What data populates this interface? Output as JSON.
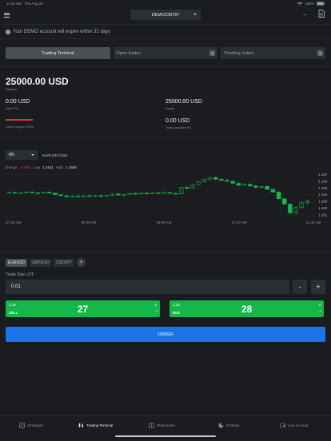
{
  "status_bar": {
    "time": "11:42 AM",
    "date": "Thu Aug 25",
    "battery": "100%"
  },
  "header": {
    "account": "DEMO228787",
    "more_label": "..."
  },
  "notice": {
    "text": "Your DEMO account will expire within 31 days"
  },
  "tabs": [
    {
      "label": "Trading Terminal",
      "active": true,
      "badge": ""
    },
    {
      "label": "Open trades",
      "active": false,
      "badge": "0"
    },
    {
      "label": "Pending orders",
      "active": false,
      "badge": "0"
    }
  ],
  "account": {
    "balance": "25000.00 USD",
    "balance_label": "Balance",
    "open_pl": "0.00 USD",
    "open_pl_label": "Open P/L",
    "equity": "25000.00 USD",
    "equity_label": "Equity",
    "used_margin_label": "Used margin 0.00%",
    "today_pl": "0.00 USD",
    "today_pl_label": "Today realized P/L"
  },
  "chart_header": {
    "timeframe": "M5",
    "title": "EURUSD Chart",
    "change_label": "Change",
    "change": "-0.08%",
    "low_label": "Low",
    "low": "1.1611",
    "high_label": "High",
    "high": "1.1668"
  },
  "chart_data": {
    "type": "candlestick",
    "y_ticks": [
      "1.167",
      "1.166",
      "1.165",
      "1.164",
      "1.163",
      "1.162",
      "1.161"
    ],
    "x_ticks": [
      "07:25 AM",
      "08:35 AM",
      "09:40 AM",
      "10:40 AM",
      "11:40 AM"
    ],
    "ylim": [
      1.1604,
      1.1673
    ],
    "candles": [
      [
        1.16425,
        1.16445,
        1.16415,
        1.16435
      ],
      [
        1.16435,
        1.16445,
        1.1642,
        1.16425
      ],
      [
        1.16425,
        1.1644,
        1.1641,
        1.1643
      ],
      [
        1.1643,
        1.16445,
        1.1642,
        1.1644
      ],
      [
        1.1644,
        1.1645,
        1.16425,
        1.1643
      ],
      [
        1.1643,
        1.1644,
        1.16415,
        1.16425
      ],
      [
        1.16425,
        1.16445,
        1.1642,
        1.1644
      ],
      [
        1.1644,
        1.16445,
        1.1642,
        1.16425
      ],
      [
        1.16425,
        1.1643,
        1.16395,
        1.164
      ],
      [
        1.164,
        1.1641,
        1.1638,
        1.16385
      ],
      [
        1.16385,
        1.16395,
        1.1636,
        1.1637
      ],
      [
        1.1637,
        1.1639,
        1.1636,
        1.1638
      ],
      [
        1.1638,
        1.16395,
        1.16365,
        1.1637
      ],
      [
        1.1637,
        1.1639,
        1.1636,
        1.16385
      ],
      [
        1.16385,
        1.164,
        1.16375,
        1.1638
      ],
      [
        1.1638,
        1.16395,
        1.1637,
        1.16385
      ],
      [
        1.16385,
        1.164,
        1.1637,
        1.16375
      ],
      [
        1.16375,
        1.16395,
        1.16365,
        1.1639
      ],
      [
        1.1639,
        1.1642,
        1.1638,
        1.1641
      ],
      [
        1.1641,
        1.16425,
        1.1639,
        1.16395
      ],
      [
        1.16395,
        1.16415,
        1.16385,
        1.16405
      ],
      [
        1.16405,
        1.16425,
        1.164,
        1.1642
      ],
      [
        1.1642,
        1.1643,
        1.164,
        1.1641
      ],
      [
        1.1641,
        1.1643,
        1.16405,
        1.16425
      ],
      [
        1.16425,
        1.1644,
        1.1641,
        1.16415
      ],
      [
        1.16415,
        1.16435,
        1.1641,
        1.1643
      ],
      [
        1.1643,
        1.1644,
        1.16415,
        1.1642
      ],
      [
        1.1642,
        1.1644,
        1.16415,
        1.16435
      ],
      [
        1.16435,
        1.1644,
        1.16415,
        1.1642
      ],
      [
        1.1642,
        1.1643,
        1.16405,
        1.16415
      ],
      [
        1.16415,
        1.1652,
        1.1641,
        1.1651
      ],
      [
        1.1651,
        1.1653,
        1.1648,
        1.16495
      ],
      [
        1.16495,
        1.1656,
        1.1649,
        1.1655
      ],
      [
        1.1655,
        1.166,
        1.1654,
        1.1659
      ],
      [
        1.1659,
        1.1664,
        1.1658,
        1.1663
      ],
      [
        1.1663,
        1.16665,
        1.1662,
        1.16655
      ],
      [
        1.16655,
        1.1667,
        1.1662,
        1.1663
      ],
      [
        1.1663,
        1.1665,
        1.1661,
        1.16615
      ],
      [
        1.16615,
        1.1664,
        1.1659,
        1.166
      ],
      [
        1.166,
        1.1662,
        1.1656,
        1.1657
      ],
      [
        1.1657,
        1.1659,
        1.1653,
        1.1654
      ],
      [
        1.1654,
        1.16565,
        1.1653,
        1.16555
      ],
      [
        1.16555,
        1.1657,
        1.1652,
        1.1653
      ],
      [
        1.1653,
        1.1655,
        1.165,
        1.1651
      ],
      [
        1.1651,
        1.16535,
        1.16495,
        1.16525
      ],
      [
        1.16525,
        1.16535,
        1.1647,
        1.1648
      ],
      [
        1.1648,
        1.165,
        1.1643,
        1.1644
      ],
      [
        1.1644,
        1.1645,
        1.1633,
        1.1634
      ],
      [
        1.1634,
        1.1635,
        1.1625,
        1.1626
      ],
      [
        1.1626,
        1.1628,
        1.161,
        1.1613
      ],
      [
        1.1613,
        1.1623,
        1.1611,
        1.1621
      ],
      [
        1.1621,
        1.163,
        1.1619,
        1.1628
      ],
      [
        1.1628,
        1.1633,
        1.1625,
        1.1631
      ]
    ]
  },
  "symbols": [
    "EURUSD",
    "GBPUSD",
    "USDJPY"
  ],
  "symbols_add": "+",
  "trade": {
    "lot_label": "Trade Size LOT:",
    "lot_value": "0.01",
    "minus": "-",
    "plus": "+",
    "sell": {
      "top_left": "1.16",
      "label": "SELL",
      "price": "27",
      "top_right": "1",
      "arrow": "^"
    },
    "buy": {
      "top_left": "1.16",
      "label": "BUY",
      "price": "28",
      "top_right": "3",
      "arrow": "^"
    },
    "order_label": "ORDER"
  },
  "nav": [
    {
      "label": "Strategies",
      "icon": "strategies-icon",
      "active": false
    },
    {
      "label": "Trading Terminal",
      "icon": "candlestick-icon",
      "active": true
    },
    {
      "label": "Statements",
      "icon": "book-icon",
      "active": false
    },
    {
      "label": "Portfolio",
      "icon": "pie-chart-icon",
      "active": false
    },
    {
      "label": "Live account",
      "icon": "wallet-icon",
      "active": false
    }
  ],
  "colors": {
    "up": "#14b84a",
    "down": "#14b84a",
    "accent": "#1a73e8",
    "negative": "#e0313d"
  }
}
